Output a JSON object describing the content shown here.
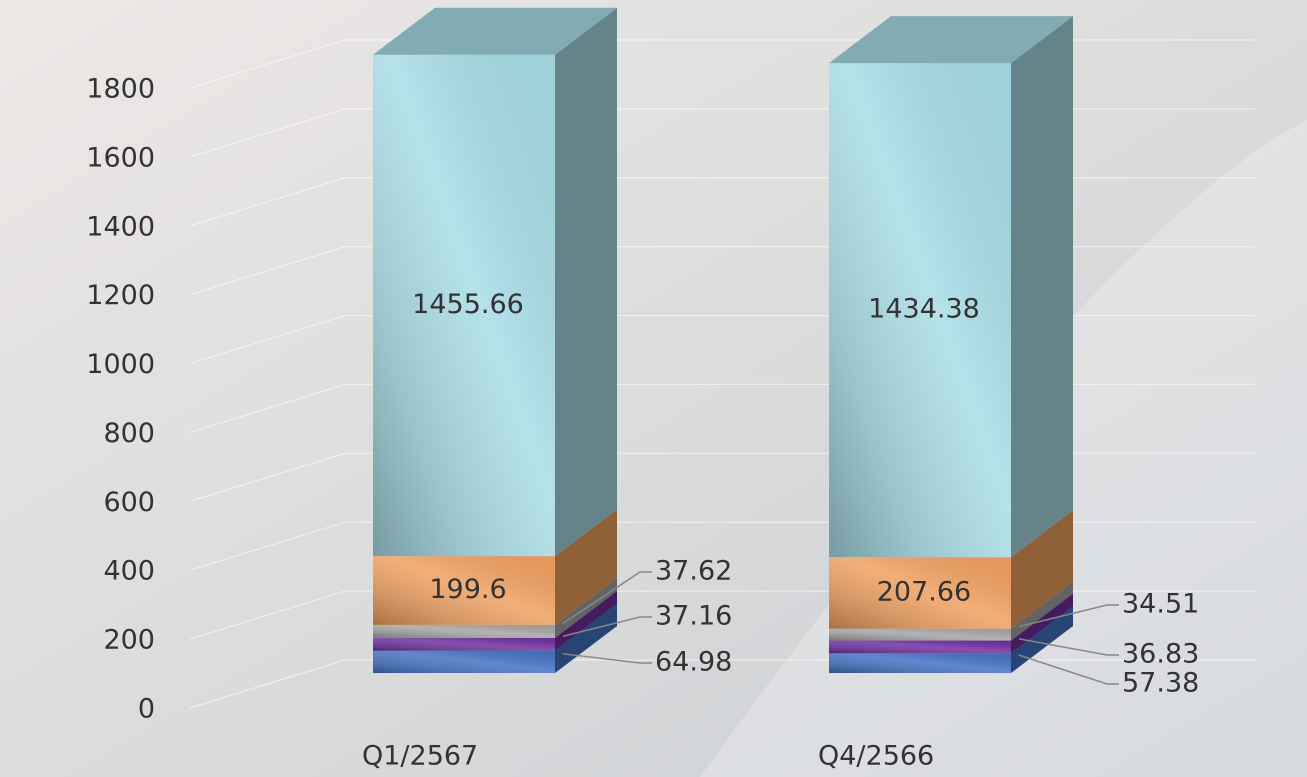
{
  "chart_data": {
    "type": "bar3d_stacked",
    "categories": [
      "Q1/2567",
      "Q4/2566"
    ],
    "series": [
      {
        "color": "#4472c4",
        "values": [
          64.98,
          57.38
        ]
      },
      {
        "color": "#7030a0",
        "values": [
          37.16,
          36.83
        ]
      },
      {
        "color": "#a5a5a5",
        "values": [
          37.62,
          34.51
        ]
      },
      {
        "color": "#f0a060",
        "values": [
          199.6,
          207.66
        ]
      },
      {
        "color": "#a8dce6",
        "values": [
          1455.66,
          1434.38
        ]
      }
    ],
    "ylim": [
      0,
      1800
    ],
    "yticks": [
      0,
      200,
      400,
      600,
      800,
      1000,
      1200,
      1400,
      1600,
      1800
    ],
    "grid": true
  }
}
